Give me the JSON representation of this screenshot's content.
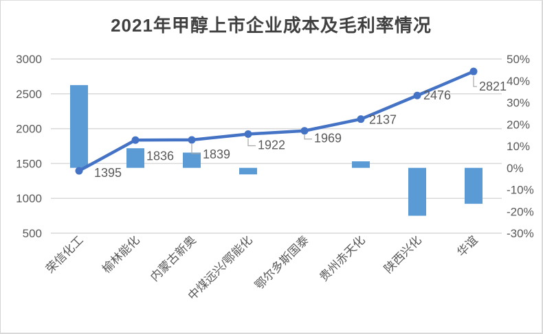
{
  "chart_data": {
    "type": "combo",
    "title": "2021年甲醇上市企业成本及毛利率情况",
    "categories": [
      "荣信化工",
      "榆林能化",
      "内蒙古新奥",
      "中煤远兴/鄂能化",
      "鄂尔多斯国泰",
      "贵州赤天化",
      "陕西兴化",
      "华谊"
    ],
    "series": [
      {
        "id": "cost-line",
        "type": "line",
        "axis": "left",
        "values": [
          1395,
          1836,
          1839,
          1922,
          1969,
          2137,
          2476,
          2821
        ],
        "point_labels": [
          "1395",
          "1836",
          "1839",
          "1922",
          "1969",
          "2137",
          "2476",
          "2821"
        ]
      },
      {
        "id": "margin-bars",
        "type": "bar",
        "axis": "right",
        "values_percent": [
          38,
          9,
          7,
          -3,
          0,
          3,
          -22,
          -16.5
        ]
      }
    ],
    "left_axis": {
      "min": 500,
      "max": 3000,
      "step": 500,
      "ticks": [
        "3000",
        "2500",
        "2000",
        "1500",
        "1000",
        "500"
      ]
    },
    "right_axis": {
      "min": -30,
      "max": 50,
      "step": 10,
      "ticks": [
        "50%",
        "40%",
        "30%",
        "20%",
        "10%",
        "0%",
        "-10%",
        "-20%",
        "-30%"
      ]
    },
    "grid": true,
    "legend": "none",
    "colors": {
      "bar": "#5B9BD5",
      "line": "#4472C4",
      "marker": "#4472C4",
      "grid": "#D9D9D9",
      "tick_label": "#595959",
      "data_label": "#595959",
      "category_label": "#595959",
      "title": "#404040",
      "leader": "#A6A6A6"
    }
  }
}
